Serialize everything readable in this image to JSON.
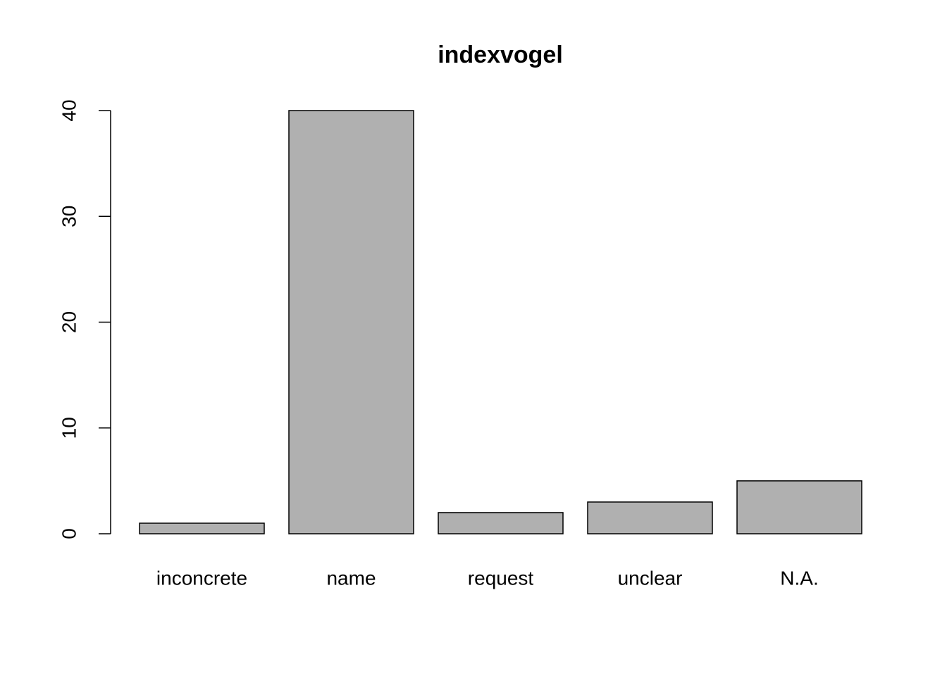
{
  "chart_data": {
    "type": "bar",
    "title": "indexvogel",
    "categories": [
      "inconcrete",
      "name",
      "request",
      "unclear",
      "N.A."
    ],
    "values": [
      1,
      40,
      2,
      3,
      5
    ],
    "color": "#b0b0b0",
    "ylim": [
      0,
      40
    ],
    "yticks": [
      0,
      10,
      20,
      30,
      40
    ],
    "grid": false
  }
}
